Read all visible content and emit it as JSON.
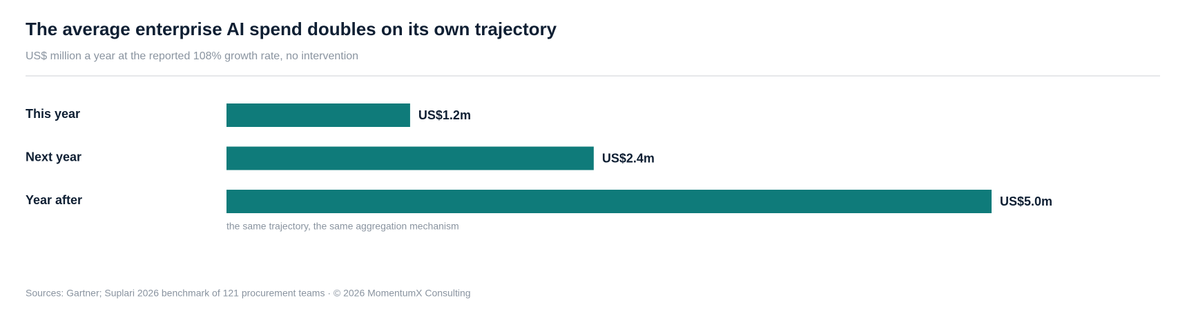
{
  "chart_data": {
    "type": "bar",
    "title": "The average enterprise AI spend doubles on its own trajectory",
    "subtitle": "US$ million a year at the reported 108% growth rate, no intervention",
    "categories": [
      "This year",
      "Next year",
      "Year after"
    ],
    "values": [
      1.2,
      2.4,
      5.0
    ],
    "value_labels": [
      "US$1.2m",
      "US$2.4m",
      "US$5.0m"
    ],
    "color": "#0f7b7a",
    "annotation": "the same trajectory, the same aggregation mechanism",
    "footer": "Sources: Gartner; Suplari 2026 benchmark of 121 procurement teams · © 2026 MomentumX Consulting"
  }
}
